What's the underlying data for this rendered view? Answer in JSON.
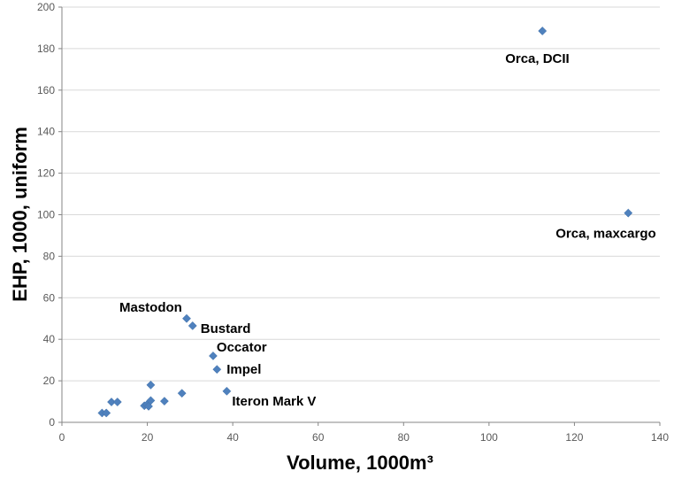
{
  "chart_data": {
    "type": "scatter",
    "xlabel": "Volume, 1000m³",
    "ylabel": "EHP, 1000, uniform",
    "xlim": [
      0,
      140
    ],
    "ylim": [
      0,
      200
    ],
    "xticks": [
      0,
      20,
      40,
      60,
      80,
      100,
      120,
      140
    ],
    "yticks": [
      0,
      20,
      40,
      60,
      80,
      100,
      120,
      140,
      160,
      180,
      200
    ],
    "grid": "horizontal",
    "legend": "none",
    "marker_color": "#4f81bd",
    "points": [
      {
        "x": 9.4,
        "y": 4.5,
        "label": ""
      },
      {
        "x": 10.4,
        "y": 4.5,
        "label": ""
      },
      {
        "x": 11.6,
        "y": 9.8,
        "label": ""
      },
      {
        "x": 13.0,
        "y": 9.8,
        "label": ""
      },
      {
        "x": 19.3,
        "y": 8.0,
        "label": ""
      },
      {
        "x": 19.9,
        "y": 8.5,
        "label": ""
      },
      {
        "x": 20.3,
        "y": 7.7,
        "label": ""
      },
      {
        "x": 20.8,
        "y": 10.5,
        "label": ""
      },
      {
        "x": 20.8,
        "y": 18.0,
        "label": ""
      },
      {
        "x": 24.0,
        "y": 10.2,
        "label": ""
      },
      {
        "x": 28.1,
        "y": 14.0,
        "label": ""
      },
      {
        "x": 29.2,
        "y": 50.0,
        "label": "Mastodon"
      },
      {
        "x": 30.6,
        "y": 46.5,
        "label": "Bustard"
      },
      {
        "x": 35.4,
        "y": 32.0,
        "label": "Occator"
      },
      {
        "x": 36.3,
        "y": 25.5,
        "label": "Impel"
      },
      {
        "x": 38.6,
        "y": 15.0,
        "label": "Iteron Mark V"
      },
      {
        "x": 112.5,
        "y": 188.5,
        "label": "Orca, DCII"
      },
      {
        "x": 132.6,
        "y": 100.8,
        "label": "Orca, maxcargo"
      }
    ]
  }
}
